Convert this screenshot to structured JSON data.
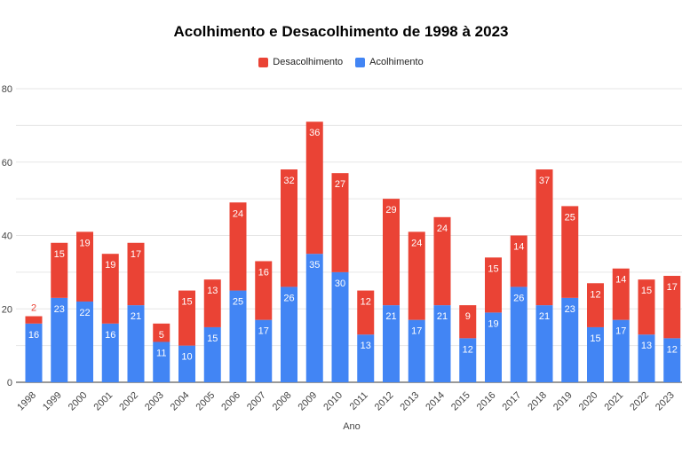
{
  "chart_data": {
    "type": "bar",
    "stacked": true,
    "title": "Acolhimento e Desacolhimento de 1998 à 2023",
    "xlabel": "Ano",
    "ylabel": "",
    "ylim": [
      0,
      80
    ],
    "yticks": [
      0,
      20,
      40,
      60,
      80
    ],
    "grid": true,
    "legend_position": "top",
    "categories": [
      "1998",
      "1999",
      "2000",
      "2001",
      "2002",
      "2003",
      "2004",
      "2005",
      "2006",
      "2007",
      "2008",
      "2009",
      "2010",
      "2011",
      "2012",
      "2013",
      "2014",
      "2015",
      "2016",
      "2017",
      "2018",
      "2019",
      "2020",
      "2021",
      "2022",
      "2023"
    ],
    "series": [
      {
        "name": "Acolhimento",
        "color": "#4285f4",
        "values": [
          16,
          23,
          22,
          16,
          21,
          11,
          10,
          15,
          25,
          17,
          26,
          35,
          30,
          13,
          21,
          17,
          21,
          12,
          19,
          26,
          21,
          23,
          15,
          17,
          13,
          12
        ]
      },
      {
        "name": "Desacolhimento",
        "color": "#ea4335",
        "values": [
          2,
          15,
          19,
          19,
          17,
          5,
          15,
          13,
          24,
          16,
          32,
          36,
          27,
          12,
          29,
          24,
          24,
          9,
          15,
          14,
          37,
          25,
          12,
          14,
          15,
          17
        ]
      }
    ],
    "legend_order": [
      "Desacolhimento",
      "Acolhimento"
    ]
  }
}
